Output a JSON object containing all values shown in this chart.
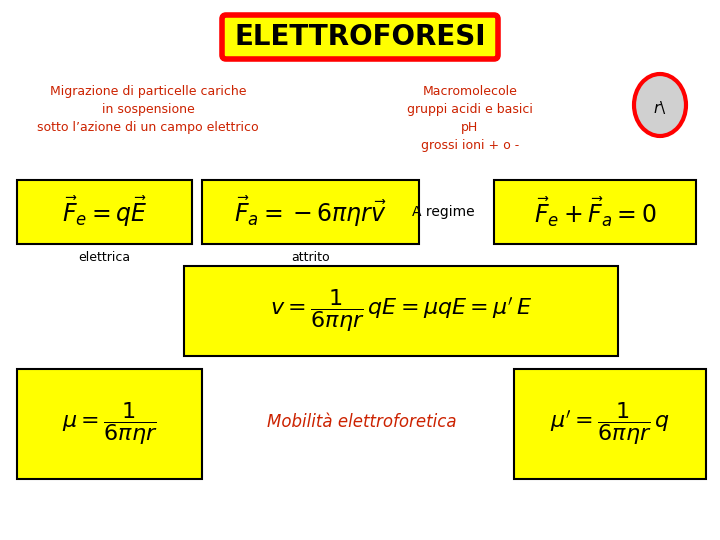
{
  "title": "ELETTROFORESI",
  "bg_color": "#FFFFFF",
  "yellow": "#FFFF00",
  "red": "#FF0000",
  "darkred": "#CC2200",
  "black": "#000000",
  "left_desc_lines": [
    "Migrazione di particelle cariche",
    "in sospensione",
    "sotto l’azione di un campo elettrico"
  ],
  "right_desc_lines": [
    "Macromolecole",
    "gruppi acidi e basici",
    "pH",
    "grossi ioni + o -"
  ],
  "label_elettrica": "elettrica",
  "label_attrito": "attrito",
  "label_aregime": "A regime",
  "label_mobilita": "Mobilità elettroforetica",
  "formula1": "$\\vec{F}_e = q\\vec{E}$",
  "formula2": "$\\vec{F}_a = -6\\pi\\eta r\\vec{v}$",
  "formula3": "$\\vec{F}_e + \\vec{F}_a = 0$",
  "formula4": "$v = \\dfrac{1}{6\\pi\\eta r}\\,qE = \\mu qE = \\mu^{\\prime}\\, E$",
  "formula5": "$\\mu = \\dfrac{1}{6\\pi\\eta r}$",
  "formula6": "$\\mu^{\\prime} = \\dfrac{1}{6\\pi\\eta r}\\,q$"
}
